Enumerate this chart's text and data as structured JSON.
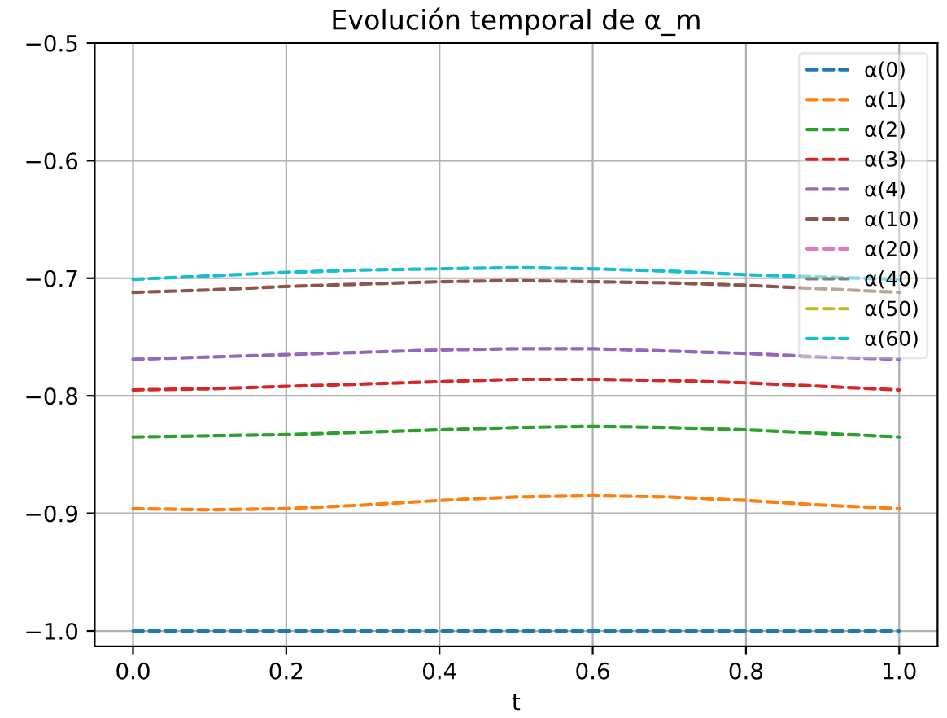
{
  "chart_data": {
    "type": "line",
    "title": "Evolución temporal de α_m",
    "xlabel": "t",
    "x": [
      0,
      0.1,
      0.2,
      0.3,
      0.4,
      0.5,
      0.6,
      0.7,
      0.8,
      0.9,
      1.0
    ],
    "series": [
      {
        "name": "α(0)",
        "color": "#1f77b4",
        "values": [
          -1.0,
          -1.0,
          -1.0,
          -1.0,
          -1.0,
          -1.0,
          -1.0,
          -1.0,
          -1.0,
          -1.0,
          -1.0
        ]
      },
      {
        "name": "α(1)",
        "color": "#ff7f0e",
        "values": [
          -0.896,
          -0.897,
          -0.896,
          -0.893,
          -0.889,
          -0.886,
          -0.885,
          -0.886,
          -0.889,
          -0.893,
          -0.896
        ]
      },
      {
        "name": "α(2)",
        "color": "#2ca02c",
        "values": [
          -0.835,
          -0.834,
          -0.833,
          -0.831,
          -0.829,
          -0.827,
          -0.826,
          -0.827,
          -0.829,
          -0.832,
          -0.835
        ]
      },
      {
        "name": "α(3)",
        "color": "#d62728",
        "values": [
          -0.795,
          -0.794,
          -0.792,
          -0.79,
          -0.788,
          -0.786,
          -0.786,
          -0.787,
          -0.789,
          -0.792,
          -0.795
        ]
      },
      {
        "name": "α(4)",
        "color": "#9467bd",
        "values": [
          -0.769,
          -0.767,
          -0.765,
          -0.763,
          -0.761,
          -0.76,
          -0.76,
          -0.762,
          -0.764,
          -0.767,
          -0.769
        ]
      },
      {
        "name": "α(10)",
        "color": "#8c564b",
        "values": [
          -0.712,
          -0.71,
          -0.707,
          -0.705,
          -0.703,
          -0.702,
          -0.703,
          -0.704,
          -0.706,
          -0.709,
          -0.712
        ]
      },
      {
        "name": "α(20)",
        "color": "#e377c2",
        "values": [
          null,
          null,
          null,
          null,
          null,
          null,
          null,
          null,
          null,
          null,
          null
        ]
      },
      {
        "name": "α(40)",
        "color": "#7f7f7f",
        "values": [
          null,
          null,
          null,
          null,
          null,
          null,
          null,
          null,
          null,
          null,
          null
        ]
      },
      {
        "name": "α(50)",
        "color": "#bcbd22",
        "values": [
          null,
          null,
          null,
          null,
          null,
          null,
          null,
          null,
          null,
          null,
          null
        ]
      },
      {
        "name": "α(60)",
        "color": "#17becf",
        "values": [
          -0.701,
          -0.698,
          -0.695,
          -0.693,
          -0.692,
          -0.691,
          -0.692,
          -0.694,
          -0.697,
          -0.699,
          -0.701
        ]
      }
    ],
    "xlim": [
      -0.05,
      1.05
    ],
    "ylim": [
      -1.013,
      -0.5
    ],
    "xticks": [
      {
        "value": 0,
        "label": "0.0"
      },
      0.2,
      0.4,
      0.6,
      0.8,
      {
        "value": 1,
        "label": "1.0"
      }
    ],
    "yticks": [
      {
        "value": -1.0,
        "label": "−1.0"
      },
      {
        "value": -0.9,
        "label": "−0.9"
      },
      {
        "value": -0.8,
        "label": "−0.8"
      },
      {
        "value": -0.7,
        "label": "−0.7"
      },
      {
        "value": -0.6,
        "label": "−0.6"
      },
      {
        "value": -0.5,
        "label": "−0.5"
      }
    ],
    "grid": true,
    "legend": "top right",
    "line_style": "dashed",
    "marker": "none"
  }
}
